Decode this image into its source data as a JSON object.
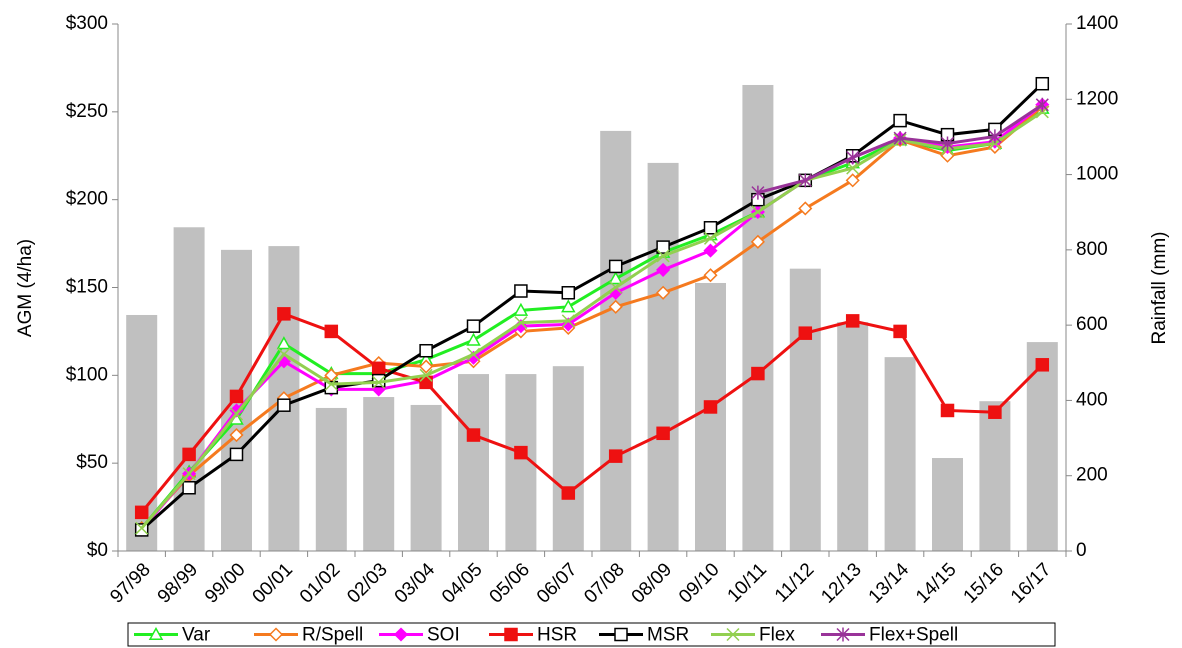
{
  "chart_data": {
    "type": "bar-line",
    "y_label": "AGM (4/ha)",
    "y2_label": "Rainfall (mm)",
    "categories": [
      "97/98",
      "98/99",
      "99/00",
      "00/01",
      "01/02",
      "02/03",
      "03/04",
      "04/05",
      "05/06",
      "06/07",
      "07/08",
      "08/09",
      "09/10",
      "10/11",
      "11/12",
      "12/13",
      "13/14",
      "14/15",
      "15/16",
      "16/17"
    ],
    "ylim": [
      0,
      300
    ],
    "yticks": [
      {
        "value": 0,
        "label": "$0"
      },
      {
        "value": 50,
        "label": "$50"
      },
      {
        "value": 100,
        "label": "$100"
      },
      {
        "value": 150,
        "label": "$150"
      },
      {
        "value": 200,
        "label": "$200"
      },
      {
        "value": 250,
        "label": "$250"
      },
      {
        "value": 300,
        "label": "$300"
      }
    ],
    "y2lim": [
      0,
      1400
    ],
    "y2ticks": [
      0,
      200,
      400,
      600,
      800,
      1000,
      1200,
      1400
    ],
    "rainfall": {
      "axis": "y2",
      "color": "#c0c0c0",
      "values": [
        627,
        860,
        800,
        810,
        380,
        409,
        388,
        470,
        470,
        491,
        1116,
        1031,
        712,
        1238,
        750,
        608,
        515,
        247,
        398,
        555
      ]
    },
    "legend": "bottom",
    "series": [
      {
        "name": "Var",
        "color": "#22ee22",
        "marker": "triangle",
        "values": [
          13,
          45,
          75,
          118,
          101,
          101,
          109,
          120,
          137,
          139,
          155,
          170,
          180,
          193,
          211,
          221,
          234,
          228,
          232,
          252
        ]
      },
      {
        "name": "R/Spell",
        "color": "#f57a1f",
        "marker": "diamond-open",
        "values": [
          13,
          43,
          66,
          87,
          100,
          107,
          105,
          108,
          125,
          127,
          139,
          147,
          157,
          176,
          195,
          211,
          234,
          225,
          230,
          253
        ]
      },
      {
        "name": "SOI",
        "color": "#ff00ff",
        "marker": "diamond",
        "values": [
          12,
          44,
          80,
          108,
          92,
          92,
          97,
          110,
          128,
          129,
          147,
          160,
          171,
          193,
          211,
          224,
          235,
          230,
          233,
          254
        ]
      },
      {
        "name": "HSR",
        "color": "#ee1111",
        "marker": "square",
        "values": [
          22,
          55,
          88,
          135,
          125,
          104,
          96,
          66,
          56,
          33,
          54,
          67,
          82,
          101,
          124,
          131,
          125,
          80,
          79,
          106
        ]
      },
      {
        "name": "MSR",
        "color": "#000000",
        "marker": "square-open",
        "values": [
          12,
          36,
          55,
          83,
          93,
          97,
          114,
          128,
          148,
          147,
          162,
          173,
          184,
          200,
          211,
          225,
          245,
          237,
          240,
          266
        ]
      },
      {
        "name": "Flex",
        "color": "#92d050",
        "marker": "x",
        "values": [
          13,
          44,
          78,
          112,
          95,
          96,
          100,
          112,
          130,
          131,
          150,
          168,
          178,
          193,
          211,
          218,
          234,
          229,
          232,
          250
        ]
      },
      {
        "name": "Flex+Spell",
        "color": "#993399",
        "marker": "star",
        "values": [
          null,
          null,
          null,
          null,
          null,
          null,
          null,
          null,
          null,
          null,
          null,
          null,
          null,
          204,
          211,
          224,
          235,
          232,
          236,
          254
        ]
      }
    ]
  }
}
